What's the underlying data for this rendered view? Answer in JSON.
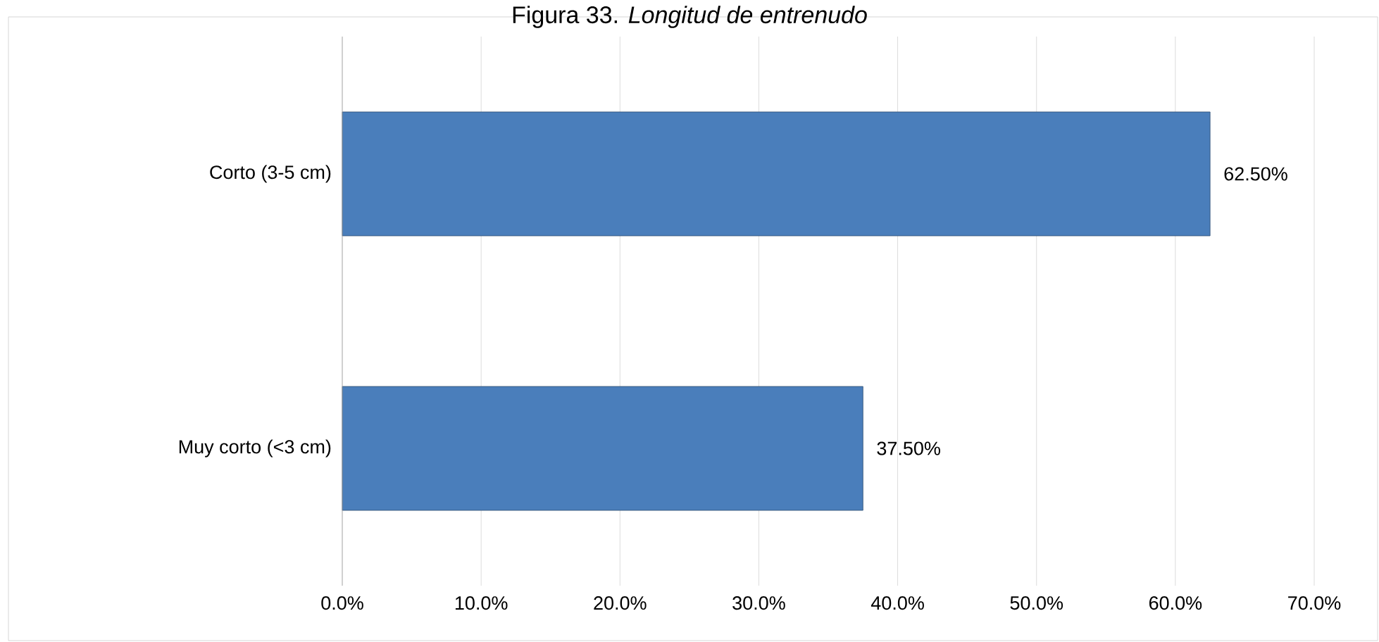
{
  "chart_data": {
    "type": "bar",
    "orientation": "horizontal",
    "title": "Figura 33. *Longitud de entrenudo*",
    "categories": [
      "Corto (3-5 cm)",
      "Muy corto (<3 cm)"
    ],
    "values": [
      62.5,
      37.5
    ],
    "value_labels": [
      "62.50%",
      "37.50%"
    ],
    "color": "#4a7ebb",
    "xlim": [
      0,
      70
    ],
    "xticks": [
      {
        "value": 0,
        "label": "0.0%"
      },
      {
        "value": 10,
        "label": "10.0%"
      },
      {
        "value": 20,
        "label": "20.0%"
      },
      {
        "value": 30,
        "label": "30.0%"
      },
      {
        "value": 40,
        "label": "40.0%"
      },
      {
        "value": 50,
        "label": "50.0%"
      },
      {
        "value": 60,
        "label": "60.0%"
      },
      {
        "value": 70,
        "label": "70.0%"
      }
    ],
    "grid": "x"
  }
}
